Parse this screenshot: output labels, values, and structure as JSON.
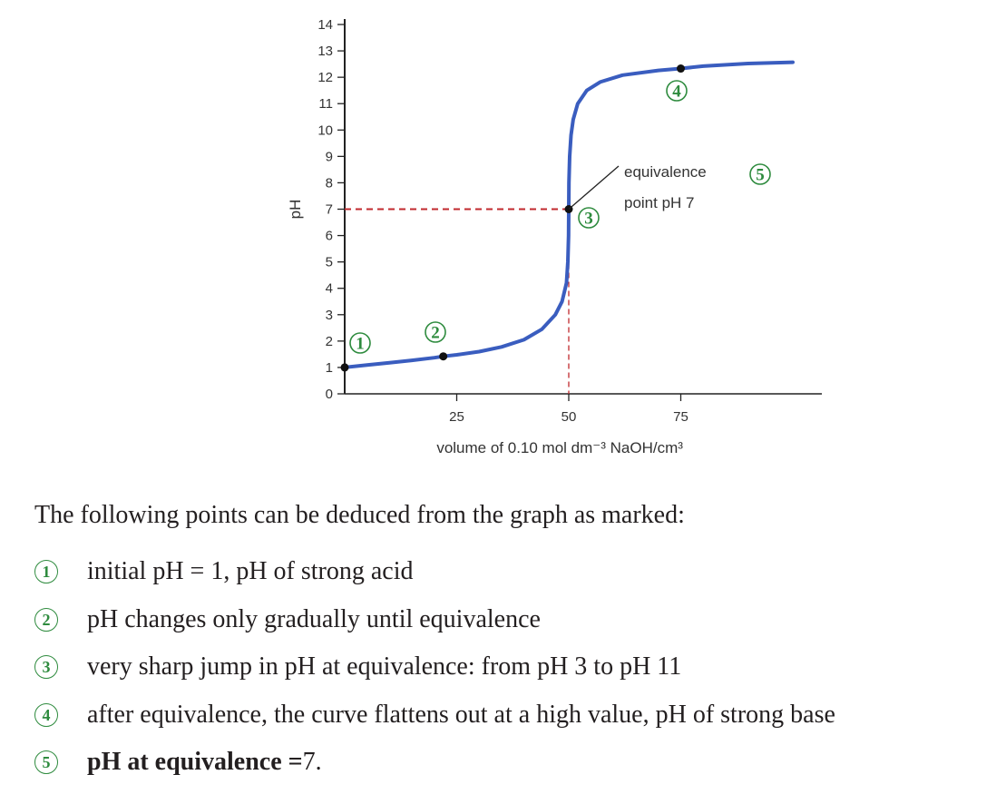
{
  "chart_data": {
    "type": "line",
    "ylabel": "pH",
    "xlabel": "volume of 0.10 mol dm⁻³ NaOH/cm³",
    "xlim": [
      0,
      100
    ],
    "ylim": [
      0,
      14
    ],
    "x_ticks": [
      25,
      50,
      75
    ],
    "y_ticks": [
      0,
      1,
      2,
      3,
      4,
      5,
      6,
      7,
      8,
      9,
      10,
      11,
      12,
      13,
      14
    ],
    "grid": false,
    "series": [
      {
        "color": "#3a5dbf",
        "points": [
          [
            0,
            1.0
          ],
          [
            5,
            1.09
          ],
          [
            10,
            1.18
          ],
          [
            15,
            1.27
          ],
          [
            20,
            1.37
          ],
          [
            22,
            1.42
          ],
          [
            25,
            1.48
          ],
          [
            30,
            1.6
          ],
          [
            35,
            1.78
          ],
          [
            40,
            2.05
          ],
          [
            44,
            2.45
          ],
          [
            47,
            3.0
          ],
          [
            48.5,
            3.5
          ],
          [
            49.5,
            4.2
          ],
          [
            49.8,
            5.0
          ],
          [
            49.95,
            6.0
          ],
          [
            50,
            7.0
          ],
          [
            50.05,
            8.0
          ],
          [
            50.2,
            9.0
          ],
          [
            50.5,
            9.8
          ],
          [
            51,
            10.4
          ],
          [
            52,
            11.0
          ],
          [
            54,
            11.5
          ],
          [
            57,
            11.82
          ],
          [
            62,
            12.08
          ],
          [
            70,
            12.26
          ],
          [
            75,
            12.33
          ],
          [
            80,
            12.42
          ],
          [
            90,
            12.52
          ],
          [
            100,
            12.57
          ]
        ]
      }
    ],
    "marked_points": [
      {
        "x": 0,
        "y": 1.0
      },
      {
        "x": 22,
        "y": 1.42
      },
      {
        "x": 50,
        "y": 7.0
      },
      {
        "x": 75,
        "y": 12.33
      }
    ],
    "reference_lines": {
      "x": 50,
      "y": 7,
      "color": "#c0282d",
      "style": "dashed"
    },
    "badges": [
      "1",
      "2",
      "3",
      "4",
      "5"
    ],
    "annotation": {
      "line1": "equivalence",
      "line2": "point pH 7"
    }
  },
  "explanation": {
    "intro": "The following points can be deduced from the graph as marked:",
    "points": [
      {
        "badge": "1",
        "main": "initial pH = 1, pH of strong acid",
        "tail": ""
      },
      {
        "badge": "2",
        "main": "pH changes only gradually until equivalence",
        "tail": ""
      },
      {
        "badge": "3",
        "main": "very sharp jump in pH at equivalence: from pH 3 to pH 11",
        "tail": ""
      },
      {
        "badge": "4",
        "main": "after equivalence, the curve flattens out at a high value, pH of strong base",
        "tail": ""
      },
      {
        "badge": "5",
        "main": "pH at equivalence = ",
        "tail": "7."
      }
    ]
  }
}
